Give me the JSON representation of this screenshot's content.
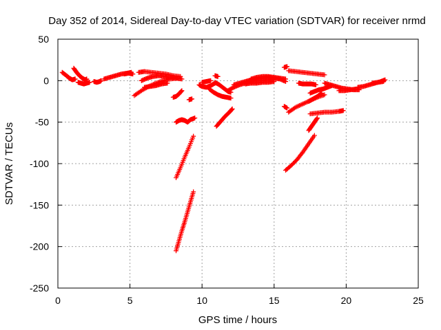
{
  "chart_data": {
    "type": "scatter",
    "title": "Day 352 of 2014, Sidereal Day-to-day VTEC variation (SDTVAR) for receiver nrmd",
    "xlabel": "GPS time / hours",
    "ylabel": "SDTVAR / TECUs",
    "xlim": [
      0,
      25
    ],
    "ylim": [
      -250,
      50
    ],
    "xticks": [
      "0",
      "5",
      "10",
      "15",
      "20",
      "25"
    ],
    "yticks": [
      "50",
      "0",
      "-50",
      "-100",
      "-150",
      "-200",
      "-250"
    ],
    "grid": true,
    "marker": "plus",
    "color": "#ff0000",
    "tracks": [
      {
        "name": "arc-01",
        "x": [
          0.3,
          0.6,
          0.8,
          1.0,
          1.2
        ],
        "y": [
          10,
          6,
          3,
          1,
          2
        ]
      },
      {
        "name": "arc-02",
        "x": [
          1.1,
          1.3,
          1.5,
          1.7,
          1.9,
          2.0
        ],
        "y": [
          15,
          10,
          6,
          3,
          1,
          2
        ]
      },
      {
        "name": "arc-03",
        "x": [
          1.4,
          1.6,
          1.8,
          2.0,
          2.2
        ],
        "y": [
          -2,
          -3,
          -4,
          -3,
          -2
        ]
      },
      {
        "name": "arc-04",
        "x": [
          2.5,
          2.7,
          2.9,
          3.0
        ],
        "y": [
          -1,
          -2,
          -1,
          0
        ]
      },
      {
        "name": "arc-05",
        "x": [
          3.2,
          3.6,
          4.0,
          4.4,
          4.8,
          5.1
        ],
        "y": [
          2,
          4,
          6,
          8,
          9,
          10
        ]
      },
      {
        "name": "arc-06",
        "x": [
          4.6,
          4.9,
          5.2
        ],
        "y": [
          8,
          9,
          8
        ]
      },
      {
        "name": "arc-07",
        "x": [
          5.3,
          5.8,
          6.3,
          6.8,
          7.3,
          7.8,
          8.3
        ],
        "y": [
          -18,
          -12,
          -7,
          -3,
          0,
          2,
          3
        ]
      },
      {
        "name": "arc-08",
        "x": [
          5.6,
          6.0,
          6.5,
          7.0,
          7.5,
          8.0,
          8.5
        ],
        "y": [
          10,
          11,
          10,
          9,
          8,
          6,
          5
        ]
      },
      {
        "name": "arc-09",
        "x": [
          5.8,
          6.2,
          6.6,
          7.0,
          7.4,
          7.8,
          8.2,
          8.6
        ],
        "y": [
          0,
          3,
          5,
          6,
          5,
          4,
          3,
          2
        ]
      },
      {
        "name": "arc-10",
        "x": [
          6.0,
          6.4,
          6.8,
          7.2,
          7.6
        ],
        "y": [
          -8,
          -7,
          -6,
          -4,
          -3
        ]
      },
      {
        "name": "arc-11",
        "x": [
          8.0,
          8.2,
          8.4,
          8.6
        ],
        "y": [
          -20,
          -19,
          -16,
          -12
        ]
      },
      {
        "name": "arc-12",
        "x": [
          9.1,
          9.3
        ],
        "y": [
          -23,
          -22
        ]
      },
      {
        "name": "arc-13",
        "x": [
          8.2,
          8.4,
          8.6,
          8.8,
          9.0,
          9.2,
          9.5
        ],
        "y": [
          -50,
          -48,
          -47,
          -48,
          -50,
          -47,
          -45
        ]
      },
      {
        "name": "arc-14",
        "x": [
          8.2,
          8.5,
          8.8,
          9.1,
          9.4
        ],
        "y": [
          -117,
          -105,
          -92,
          -80,
          -67
        ]
      },
      {
        "name": "arc-15",
        "x": [
          8.2,
          8.4,
          8.6,
          8.8,
          9.0,
          9.2,
          9.4
        ],
        "y": [
          -205,
          -193,
          -181,
          -170,
          -158,
          -146,
          -134
        ]
      },
      {
        "name": "arc-16",
        "x": [
          9.8,
          10.0,
          10.3,
          10.6,
          10.9
        ],
        "y": [
          -5,
          -7,
          -8,
          -6,
          -3
        ]
      },
      {
        "name": "arc-17",
        "x": [
          10.0,
          10.3,
          10.6
        ],
        "y": [
          -2,
          -1,
          0
        ]
      },
      {
        "name": "arc-18",
        "x": [
          10.5,
          10.8,
          11.1,
          11.4,
          11.7,
          12.0
        ],
        "y": [
          -10,
          -14,
          -17,
          -19,
          -20,
          -21
        ]
      },
      {
        "name": "arc-19",
        "x": [
          10.9,
          11.2,
          11.5,
          11.8,
          12.0
        ],
        "y": [
          -2,
          -5,
          -9,
          -13,
          -14
        ]
      },
      {
        "name": "arc-20",
        "x": [
          10.9,
          11.1
        ],
        "y": [
          6,
          5
        ]
      },
      {
        "name": "arc-21",
        "x": [
          11.0,
          11.3,
          11.6,
          11.9,
          12.1
        ],
        "y": [
          -55,
          -49,
          -43,
          -38,
          -34
        ]
      },
      {
        "name": "arc-22",
        "x": [
          11.8,
          12.2,
          12.6,
          13.0,
          13.4,
          13.8,
          14.2,
          14.6,
          15.0
        ],
        "y": [
          -12,
          -8,
          -5,
          -3,
          -1,
          0,
          0,
          1,
          1
        ]
      },
      {
        "name": "arc-23",
        "x": [
          12.2,
          12.6,
          13.0,
          13.4,
          13.8,
          14.2,
          14.6,
          15.0,
          15.4,
          15.8
        ],
        "y": [
          -5,
          -3,
          -1,
          1,
          2,
          3,
          4,
          3,
          2,
          -1
        ]
      },
      {
        "name": "arc-24",
        "x": [
          13.0,
          13.4,
          13.8,
          14.2,
          14.6,
          15.0
        ],
        "y": [
          -4,
          -3,
          -3,
          -2,
          -2,
          -1
        ]
      },
      {
        "name": "arc-25",
        "x": [
          13.4,
          13.8,
          14.2,
          14.6,
          15.0,
          15.4,
          15.8
        ],
        "y": [
          2,
          4,
          5,
          5,
          4,
          3,
          2
        ]
      },
      {
        "name": "arc-26",
        "x": [
          15.7,
          15.9
        ],
        "y": [
          16,
          17
        ]
      },
      {
        "name": "arc-27",
        "x": [
          16.0,
          16.5,
          17.0,
          17.5,
          18.0,
          18.5
        ],
        "y": [
          12,
          11,
          10,
          9,
          8,
          7
        ]
      },
      {
        "name": "arc-28",
        "x": [
          16.7,
          17.0,
          17.3,
          17.6,
          17.9
        ],
        "y": [
          -3,
          -4,
          -4,
          -4,
          -5
        ]
      },
      {
        "name": "arc-29",
        "x": [
          15.7,
          15.9
        ],
        "y": [
          -31,
          -33
        ]
      },
      {
        "name": "arc-30",
        "x": [
          16.0,
          16.5,
          17.0,
          17.5,
          18.0,
          18.5
        ],
        "y": [
          -38,
          -32,
          -28,
          -24,
          -20,
          -17
        ]
      },
      {
        "name": "arc-31",
        "x": [
          15.8,
          16.2,
          16.6,
          17.0,
          17.4,
          17.8
        ],
        "y": [
          -108,
          -102,
          -95,
          -86,
          -76,
          -66
        ]
      },
      {
        "name": "arc-32",
        "x": [
          17.4,
          17.6,
          17.8,
          18.0
        ],
        "y": [
          -60,
          -55,
          -50,
          -45
        ]
      },
      {
        "name": "arc-33",
        "x": [
          17.5,
          18.0,
          18.5,
          19.0,
          19.5,
          19.8
        ],
        "y": [
          -40,
          -39,
          -38,
          -38,
          -37,
          -36
        ]
      },
      {
        "name": "arc-34",
        "x": [
          17.5,
          17.8,
          18.1,
          18.4,
          18.7,
          19.0
        ],
        "y": [
          -15,
          -13,
          -11,
          -10,
          -8,
          -6
        ]
      },
      {
        "name": "arc-35",
        "x": [
          17.4,
          17.7,
          18.0,
          18.3
        ],
        "y": [
          -25,
          -22,
          -19,
          -15
        ]
      },
      {
        "name": "arc-36",
        "x": [
          18.5,
          18.9,
          19.3,
          19.7,
          20.1,
          20.5,
          20.9
        ],
        "y": [
          -3,
          -5,
          -7,
          -9,
          -10,
          -11,
          -11
        ]
      },
      {
        "name": "arc-37",
        "x": [
          19.5,
          19.9,
          20.3,
          20.7
        ],
        "y": [
          -12,
          -12,
          -11,
          -10
        ]
      },
      {
        "name": "arc-38",
        "x": [
          20.8,
          21.2,
          21.6,
          22.0,
          22.4,
          22.7
        ],
        "y": [
          -8,
          -7,
          -5,
          -3,
          -1,
          1
        ]
      },
      {
        "name": "arc-39",
        "x": [
          21.8,
          22.2,
          22.6
        ],
        "y": [
          -3,
          -2,
          -1
        ]
      }
    ]
  }
}
